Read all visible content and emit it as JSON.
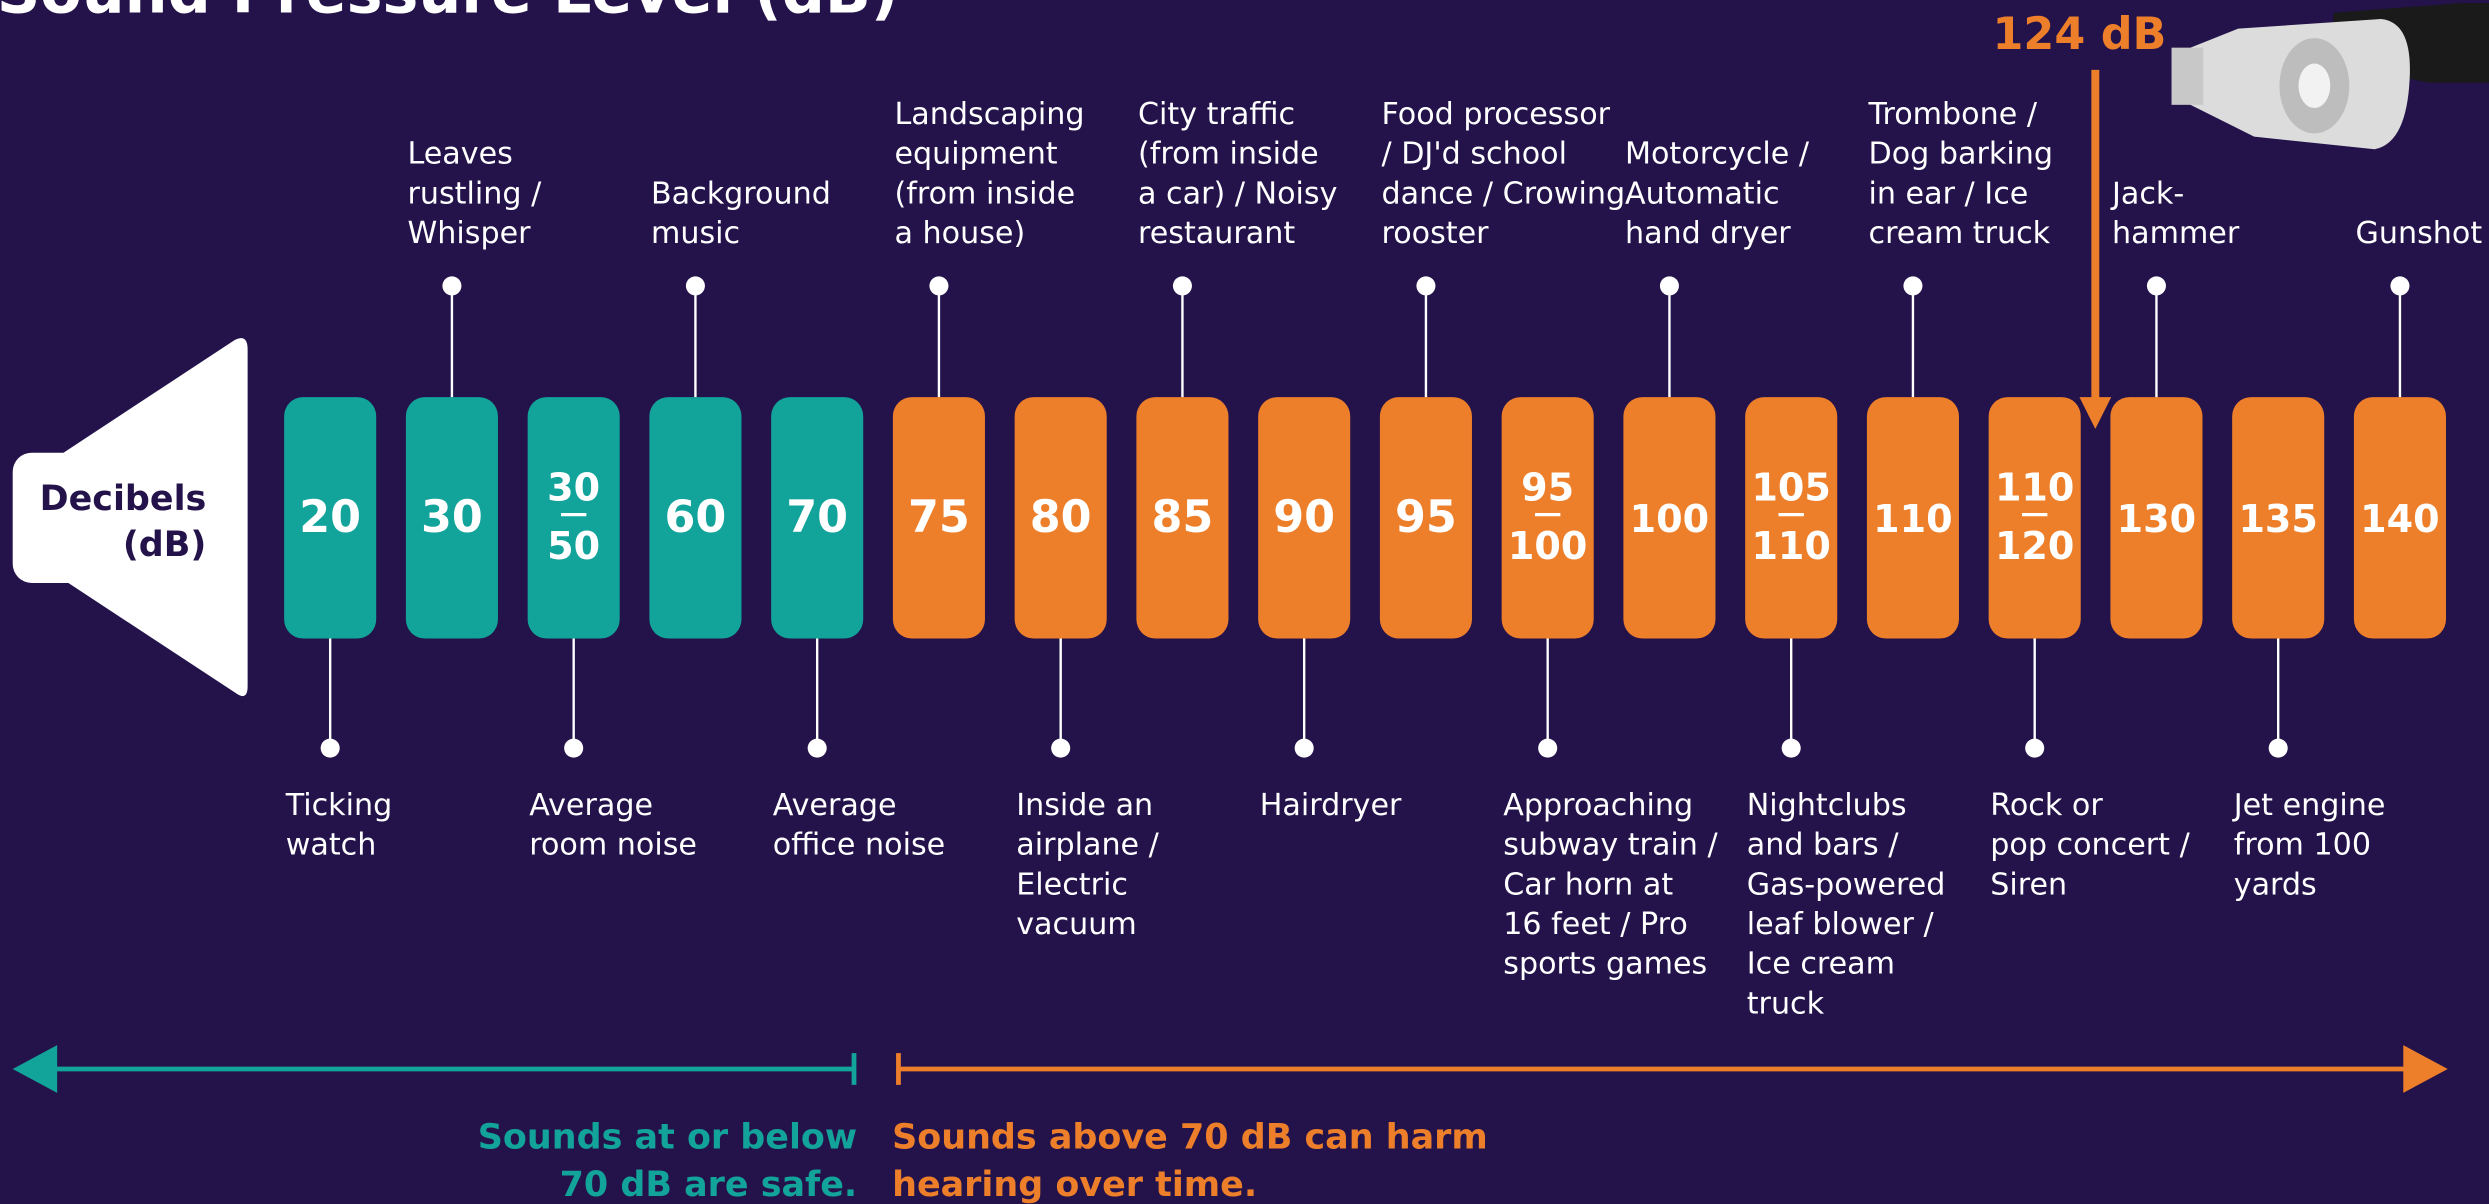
{
  "title": "Sound Pressure Level (dB)",
  "speaker_label": [
    "Decibels",
    "(dB)"
  ],
  "callout": {
    "text": "124 dB",
    "color": "#ee7f2a"
  },
  "levels": [
    {
      "value": "20",
      "color": "#12a39a",
      "below": [
        "Ticking",
        "watch"
      ]
    },
    {
      "value": "30",
      "color": "#12a39a",
      "above": [
        "Leaves",
        "rustling /",
        "Whisper"
      ]
    },
    {
      "top": "30",
      "bottom": "50",
      "color": "#12a39a",
      "below": [
        "Average",
        "room noise"
      ]
    },
    {
      "value": "60",
      "color": "#12a39a",
      "above": [
        "Background",
        "music"
      ]
    },
    {
      "value": "70",
      "color": "#12a39a",
      "below": [
        "Average",
        "office noise"
      ]
    },
    {
      "value": "75",
      "color": "#ee7f2a",
      "above": [
        "Landscaping",
        "equipment",
        "(from inside",
        "a house)"
      ]
    },
    {
      "value": "80",
      "color": "#ee7f2a",
      "below": [
        "Inside an",
        "airplane /",
        "Electric",
        "vacuum"
      ]
    },
    {
      "value": "85",
      "color": "#ee7f2a",
      "above": [
        "City traffic",
        "(from inside",
        "a car) / Noisy",
        "restaurant"
      ]
    },
    {
      "value": "90",
      "color": "#ee7f2a",
      "below": [
        "Hairdryer"
      ]
    },
    {
      "value": "95",
      "color": "#ee7f2a",
      "above": [
        "Food processor",
        "/ DJ'd school",
        "dance / Crowing",
        "rooster"
      ]
    },
    {
      "top": "95",
      "bottom": "100",
      "color": "#ee7f2a",
      "below": [
        "Approaching",
        "subway train /",
        "Car horn at",
        "16 feet / Pro",
        "sports games"
      ]
    },
    {
      "value": "100",
      "color": "#ee7f2a",
      "above": [
        "Motorcycle /",
        "Automatic",
        "hand dryer"
      ]
    },
    {
      "top": "105",
      "bottom": "110",
      "color": "#ee7f2a",
      "below": [
        "Nightclubs",
        "and bars /",
        "Gas-powered",
        "leaf blower /",
        "Ice cream",
        "truck"
      ]
    },
    {
      "value": "110",
      "color": "#ee7f2a",
      "above": [
        "Trombone /",
        "Dog barking",
        "in ear / Ice",
        "cream truck"
      ]
    },
    {
      "top": "110",
      "bottom": "120",
      "color": "#ee7f2a",
      "below": [
        "Rock or",
        "pop concert /",
        "Siren"
      ]
    },
    {
      "value": "130",
      "color": "#ee7f2a",
      "above": [
        "Jack-",
        "hammer"
      ]
    },
    {
      "value": "135",
      "color": "#ee7f2a",
      "below": [
        "Jet engine",
        "from 100",
        "yards"
      ]
    },
    {
      "value": "140",
      "color": "#ee7f2a",
      "above": [
        "Gunshot"
      ]
    }
  ],
  "safe_note": {
    "lines": [
      "Sounds at or below",
      "70 dB are safe."
    ],
    "color": "#12a39a"
  },
  "harm_note": {
    "lines": [
      "Sounds above 70 dB can harm",
      "hearing over time."
    ],
    "color": "#ee7f2a"
  }
}
